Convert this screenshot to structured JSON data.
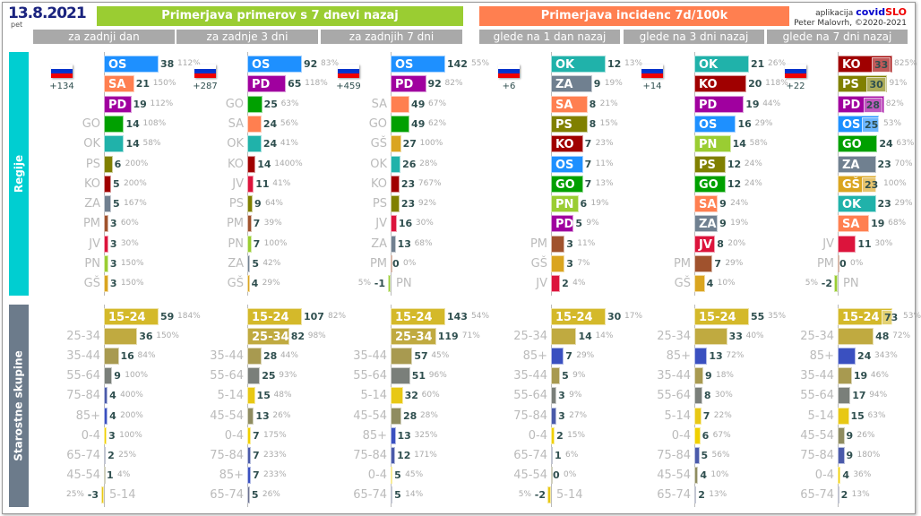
{
  "header": {
    "date": "13.8.2021",
    "weekday": "pet",
    "title_cases": "Primerjava primerov s 7 dnevi nazaj",
    "title_incidence": "Primerjava incidenc 7d/100k",
    "app_prefix": "aplikacija",
    "app_name_a": "covid",
    "app_name_b": "SLO",
    "author": "Peter Malovrh, ©2020-2021"
  },
  "subheaders": [
    "za zadnji dan",
    "za zadnje 3 dni",
    "za zadnjih 7 dni",
    "glede na 1 dan nazaj",
    "glede na 3 dni nazaj",
    "glede na 7 dni nazaj"
  ],
  "sections": {
    "regions": "Regije",
    "ages": "Starostne skupine"
  },
  "colors": {
    "cases_header": "#9acd32",
    "incidence_header": "#ff7f50",
    "regions_side": "#00ced1",
    "ages_side": "#6c7b8b",
    "OS": "#1e90ff",
    "SA": "#ff7f50",
    "PD": "#a0009f",
    "GO": "#00a000",
    "OK": "#20b2aa",
    "PS": "#808000",
    "KO": "#a00000",
    "ZA": "#708090",
    "PM": "#a0522d",
    "JV": "#dc143c",
    "PN": "#9acd32",
    "GŠ": "#daa520",
    "15-24": "#d4b92a",
    "25-34": "#c0aa40",
    "35-44": "#a89a50",
    "55-64": "#7a7f7a",
    "75-84": "#4a5aaa",
    "85+": "#3a50c0",
    "0-4": "#f0d000",
    "5-14": "#e8c814",
    "45-54": "#8f8c60",
    "65-74": "#6a7090"
  },
  "panels": [
    {
      "delta": "+134",
      "regions": [
        [
          "OS",
          38,
          "112%"
        ],
        [
          "SA",
          21,
          "150%"
        ],
        [
          "PD",
          19,
          "112%"
        ],
        [
          "GO",
          14,
          "108%"
        ],
        [
          "OK",
          14,
          "58%"
        ],
        [
          "PS",
          6,
          "200%"
        ],
        [
          "KO",
          5,
          "200%"
        ],
        [
          "ZA",
          5,
          "167%"
        ],
        [
          "PM",
          3,
          "60%"
        ],
        [
          "JV",
          3,
          "30%"
        ],
        [
          "PN",
          3,
          "150%"
        ],
        [
          "GŠ",
          3,
          "150%"
        ]
      ],
      "ages": [
        [
          "15-24",
          59,
          "184%"
        ],
        [
          "25-34",
          36,
          "150%"
        ],
        [
          "35-44",
          16,
          "84%"
        ],
        [
          "55-64",
          9,
          "100%"
        ],
        [
          "75-84",
          4,
          "400%"
        ],
        [
          "85+",
          4,
          "200%"
        ],
        [
          "0-4",
          3,
          "100%"
        ],
        [
          "65-74",
          2,
          "25%"
        ],
        [
          "45-54",
          1,
          "4%"
        ],
        [
          "5-14",
          -3,
          "25%"
        ]
      ]
    },
    {
      "delta": "+287",
      "regions": [
        [
          "OS",
          92,
          "83%"
        ],
        [
          "PD",
          65,
          "118%"
        ],
        [
          "GO",
          25,
          "63%"
        ],
        [
          "SA",
          24,
          "56%"
        ],
        [
          "OK",
          24,
          "41%"
        ],
        [
          "KO",
          14,
          "1400%"
        ],
        [
          "JV",
          11,
          "41%"
        ],
        [
          "PS",
          9,
          "64%"
        ],
        [
          "PM",
          7,
          "39%"
        ],
        [
          "PN",
          7,
          "100%"
        ],
        [
          "ZA",
          5,
          "42%"
        ],
        [
          "GŠ",
          4,
          "29%"
        ]
      ],
      "ages": [
        [
          "15-24",
          107,
          "82%"
        ],
        [
          "25-34",
          82,
          "98%"
        ],
        [
          "35-44",
          28,
          "44%"
        ],
        [
          "55-64",
          25,
          "93%"
        ],
        [
          "5-14",
          15,
          "48%"
        ],
        [
          "45-54",
          13,
          "26%"
        ],
        [
          "0-4",
          7,
          "175%"
        ],
        [
          "75-84",
          7,
          "233%"
        ],
        [
          "85+",
          7,
          "233%"
        ],
        [
          "65-74",
          5,
          "26%"
        ]
      ]
    },
    {
      "delta": "+459",
      "regions": [
        [
          "OS",
          142,
          "55%"
        ],
        [
          "PD",
          92,
          "82%"
        ],
        [
          "SA",
          49,
          "67%"
        ],
        [
          "GO",
          49,
          "62%"
        ],
        [
          "GŠ",
          27,
          "100%"
        ],
        [
          "OK",
          26,
          "28%"
        ],
        [
          "KO",
          23,
          "767%"
        ],
        [
          "PS",
          23,
          "92%"
        ],
        [
          "JV",
          16,
          "30%"
        ],
        [
          "ZA",
          13,
          "68%"
        ],
        [
          "PM",
          0,
          "0%"
        ],
        [
          "PN",
          -1,
          "5%"
        ]
      ],
      "ages": [
        [
          "15-24",
          143,
          "54%"
        ],
        [
          "25-34",
          119,
          "71%"
        ],
        [
          "35-44",
          57,
          "45%"
        ],
        [
          "55-64",
          51,
          "96%"
        ],
        [
          "5-14",
          32,
          "60%"
        ],
        [
          "45-54",
          28,
          "28%"
        ],
        [
          "85+",
          13,
          "325%"
        ],
        [
          "75-84",
          12,
          "171%"
        ],
        [
          "0-4",
          5,
          "45%"
        ],
        [
          "65-74",
          5,
          "14%"
        ]
      ]
    },
    {
      "delta": "+6",
      "regions": [
        [
          "OK",
          12,
          "13%"
        ],
        [
          "ZA",
          9,
          "19%"
        ],
        [
          "SA",
          8,
          "21%"
        ],
        [
          "PS",
          8,
          "15%"
        ],
        [
          "KO",
          7,
          "23%"
        ],
        [
          "OS",
          7,
          "11%"
        ],
        [
          "GO",
          7,
          "13%"
        ],
        [
          "PN",
          6,
          "19%"
        ],
        [
          "PD",
          5,
          "9%"
        ],
        [
          "PM",
          3,
          "11%"
        ],
        [
          "GŠ",
          3,
          "7%"
        ],
        [
          "JV",
          2,
          "4%"
        ]
      ],
      "ages": [
        [
          "15-24",
          30,
          "17%"
        ],
        [
          "25-34",
          14,
          "14%"
        ],
        [
          "85+",
          7,
          "29%"
        ],
        [
          "35-44",
          5,
          "9%"
        ],
        [
          "55-64",
          3,
          "9%"
        ],
        [
          "75-84",
          3,
          "27%"
        ],
        [
          "0-4",
          2,
          "15%"
        ],
        [
          "65-74",
          1,
          "6%"
        ],
        [
          "45-54",
          0,
          "0%"
        ],
        [
          "5-14",
          -2,
          "5%"
        ]
      ]
    },
    {
      "delta": "+14",
      "regions": [
        [
          "OK",
          21,
          "26%"
        ],
        [
          "KO",
          20,
          "118%"
        ],
        [
          "PD",
          19,
          "44%"
        ],
        [
          "OS",
          16,
          "29%"
        ],
        [
          "PN",
          14,
          "58%"
        ],
        [
          "PS",
          12,
          "24%"
        ],
        [
          "GO",
          12,
          "24%"
        ],
        [
          "SA",
          9,
          "24%"
        ],
        [
          "ZA",
          9,
          "19%"
        ],
        [
          "JV",
          8,
          "20%"
        ],
        [
          "PM",
          7,
          "29%"
        ],
        [
          "GŠ",
          4,
          "10%"
        ]
      ],
      "ages": [
        [
          "15-24",
          55,
          "35%"
        ],
        [
          "25-34",
          33,
          "40%"
        ],
        [
          "85+",
          13,
          "72%"
        ],
        [
          "35-44",
          9,
          "18%"
        ],
        [
          "55-64",
          8,
          "30%"
        ],
        [
          "5-14",
          7,
          "22%"
        ],
        [
          "0-4",
          6,
          "67%"
        ],
        [
          "75-84",
          5,
          "56%"
        ],
        [
          "45-54",
          4,
          "10%"
        ],
        [
          "65-74",
          2,
          "13%"
        ]
      ]
    },
    {
      "delta": "+22",
      "regions": [
        [
          "KO",
          33,
          "825%",
          true
        ],
        [
          "PS",
          30,
          "91%",
          true
        ],
        [
          "PD",
          28,
          "82%",
          true
        ],
        [
          "OS",
          25,
          "53%",
          true
        ],
        [
          "GO",
          24,
          "63%"
        ],
        [
          "ZA",
          23,
          "70%"
        ],
        [
          "GŠ",
          23,
          "100%",
          true
        ],
        [
          "OK",
          23,
          "29%"
        ],
        [
          "SA",
          19,
          "68%"
        ],
        [
          "JV",
          11,
          "30%"
        ],
        [
          "PM",
          0,
          "0%"
        ],
        [
          "PN",
          -2,
          "5%"
        ]
      ],
      "ages": [
        [
          "15-24",
          73,
          "53%",
          true
        ],
        [
          "25-34",
          48,
          "72%"
        ],
        [
          "85+",
          24,
          "343%"
        ],
        [
          "35-44",
          19,
          "46%"
        ],
        [
          "55-64",
          17,
          "94%"
        ],
        [
          "5-14",
          15,
          "63%"
        ],
        [
          "45-54",
          9,
          "26%"
        ],
        [
          "75-84",
          9,
          "180%"
        ],
        [
          "0-4",
          4,
          "36%"
        ],
        [
          "65-74",
          2,
          "13%"
        ]
      ]
    }
  ]
}
